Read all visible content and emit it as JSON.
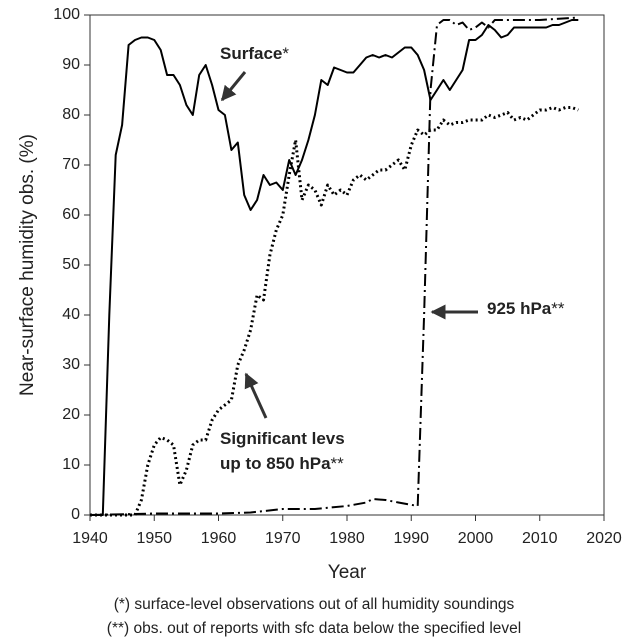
{
  "chart_data": {
    "type": "line",
    "xlabel": "Year",
    "ylabel": "Near-surface humidity obs. (%)",
    "xlim": [
      1940,
      2020
    ],
    "xticks": [
      1940,
      1950,
      1960,
      1970,
      1980,
      1990,
      2000,
      2010,
      2020
    ],
    "ylim": [
      0,
      100
    ],
    "yticks": [
      0,
      10,
      20,
      30,
      40,
      50,
      60,
      70,
      80,
      90,
      100
    ],
    "series": [
      {
        "name": "Surface",
        "color": "#000000",
        "style": "solid",
        "x": [
          1940,
          1942,
          1943,
          1944,
          1945,
          1946,
          1947,
          1948,
          1949,
          1950,
          1951,
          1952,
          1953,
          1954,
          1955,
          1956,
          1957,
          1958,
          1959,
          1960,
          1961,
          1962,
          1963,
          1964,
          1965,
          1966,
          1967,
          1968,
          1969,
          1970,
          1971,
          1972,
          1973,
          1974,
          1975,
          1976,
          1977,
          1978,
          1979,
          1980,
          1981,
          1982,
          1983,
          1984,
          1985,
          1986,
          1987,
          1988,
          1989,
          1990,
          1991,
          1992,
          1993,
          1994,
          1995,
          1996,
          1997,
          1998,
          1999,
          2000,
          2001,
          2002,
          2003,
          2004,
          2005,
          2006,
          2007,
          2008,
          2009,
          2010,
          2011,
          2012,
          2013,
          2014,
          2015,
          2016
        ],
        "values": [
          0,
          0,
          40,
          72,
          78,
          94,
          95,
          95.5,
          95.5,
          95,
          93,
          88,
          88,
          86,
          82,
          80,
          88,
          90,
          86,
          81,
          80,
          73,
          74.5,
          64,
          61,
          63,
          68,
          66,
          66.5,
          65,
          71,
          68,
          71,
          75,
          80,
          87,
          86,
          89.5,
          89,
          88.5,
          88.5,
          90,
          91.5,
          92,
          91.5,
          92,
          91.5,
          92.5,
          93.5,
          93.5,
          92,
          89,
          83,
          85,
          87,
          85,
          87,
          89,
          95,
          95,
          96,
          98,
          97,
          95.5,
          96,
          97.5,
          97.5,
          97.5,
          97.5,
          97.5,
          97.5,
          98,
          98,
          98.5,
          99,
          99
        ]
      },
      {
        "name": "Significant levs up to 850 hPa",
        "color": "#000000",
        "style": "dotted",
        "x": [
          1940,
          1947,
          1948,
          1949,
          1950,
          1951,
          1952,
          1953,
          1954,
          1955,
          1956,
          1957,
          1958,
          1959,
          1960,
          1961,
          1962,
          1963,
          1964,
          1965,
          1966,
          1967,
          1968,
          1969,
          1970,
          1971,
          1972,
          1973,
          1974,
          1975,
          1976,
          1977,
          1978,
          1979,
          1980,
          1981,
          1982,
          1983,
          1984,
          1985,
          1986,
          1987,
          1988,
          1989,
          1990,
          1991,
          1992,
          1993,
          1994,
          1995,
          1996,
          1997,
          1998,
          1999,
          2000,
          2001,
          2002,
          2003,
          2004,
          2005,
          2006,
          2007,
          2008,
          2009,
          2010,
          2011,
          2012,
          2013,
          2014,
          2015,
          2016
        ],
        "values": [
          0,
          0,
          3,
          10,
          14,
          15.5,
          15,
          14,
          6,
          9,
          14,
          15,
          15,
          19,
          21,
          22,
          23,
          30,
          33,
          37,
          44,
          43,
          52,
          57,
          60,
          68,
          75,
          63,
          66,
          65,
          62,
          66,
          64,
          65,
          64,
          67,
          68,
          67,
          68,
          69,
          69,
          70,
          71,
          69,
          74,
          77,
          76,
          77,
          77,
          79,
          78,
          78.5,
          78.5,
          79,
          79,
          79,
          80,
          79.5,
          80,
          80.5,
          79,
          79.5,
          79,
          80,
          81,
          81,
          81.5,
          81,
          81.5,
          81.5,
          81
        ]
      },
      {
        "name": "925 hPa",
        "color": "#000000",
        "style": "dashdot",
        "x": [
          1940,
          1950,
          1960,
          1965,
          1970,
          1975,
          1980,
          1983,
          1984,
          1986,
          1988,
          1991,
          1992,
          1993,
          1994,
          1995,
          1996,
          1997,
          1998,
          1999,
          2000,
          2001,
          2002,
          2003,
          2005,
          2010,
          2016
        ],
        "values": [
          0,
          0.3,
          0.3,
          0.5,
          1.2,
          1.2,
          1.8,
          2.5,
          3.2,
          3,
          2.5,
          1.8,
          40,
          85,
          98,
          99,
          99,
          98,
          98.5,
          97,
          97.5,
          98.5,
          97.5,
          99,
          99,
          99,
          99.5
        ]
      }
    ],
    "annotations": [
      {
        "lines": [
          "Surface"
        ],
        "mark": "*"
      },
      {
        "lines": [
          "Significant levs",
          "up to 850 hPa"
        ],
        "mark": "**"
      },
      {
        "lines": [
          "925 hPa"
        ],
        "mark": "**"
      }
    ],
    "footnotes": [
      "(*) surface-level observations out of all humidity soundings",
      "(**) obs. out of reports with sfc data below the specified level"
    ]
  }
}
